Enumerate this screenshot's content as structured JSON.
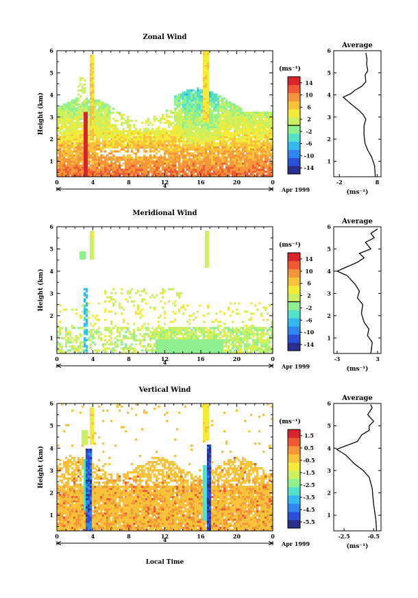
{
  "date_label": "Apr 1999",
  "xlabel": "Local Time",
  "ylabel": "Height (km)",
  "avg_xlabel": "(ms⁻¹)",
  "units_label": "(ms⁻¹)",
  "day_label": "4",
  "colors": [
    "#2b2e8c",
    "#2a4fd8",
    "#2f86f0",
    "#34b8f0",
    "#55e0c8",
    "#8ef08e",
    "#cdf060",
    "#f3ea3a",
    "#f8c23a",
    "#f6963a",
    "#ee5a32",
    "#d8242a"
  ],
  "chart_data": [
    {
      "type": "heatmap",
      "title": "Zonal Wind",
      "x_ticks": [
        "0",
        "4",
        "8",
        "12",
        "16",
        "20",
        "0"
      ],
      "x_range": [
        0,
        24
      ],
      "y_ticks": [
        "1",
        "2",
        "3",
        "4",
        "5",
        "6"
      ],
      "y_range": [
        0.3,
        6
      ],
      "colorbar_ticks": [
        "14",
        "10",
        "6",
        "2",
        "-2",
        "-6",
        "-10",
        "-14"
      ],
      "colorbar_range": [
        -16,
        16
      ],
      "colorbar_mark": 0,
      "profile": {
        "title": "Average",
        "x_ticks": [
          "-2",
          "8"
        ],
        "x_range": [
          -3.5,
          9
        ],
        "points": [
          [
            7.5,
            0.3
          ],
          [
            7.3,
            0.8
          ],
          [
            6.5,
            1.2
          ],
          [
            5.5,
            1.5
          ],
          [
            4.8,
            1.8
          ],
          [
            4.5,
            2.2
          ],
          [
            4.5,
            2.6
          ],
          [
            5,
            2.9
          ],
          [
            4.3,
            3.1
          ],
          [
            3.2,
            3.3
          ],
          [
            1,
            3.6
          ],
          [
            -1,
            3.9
          ],
          [
            1,
            4.05
          ],
          [
            2,
            4.2
          ],
          [
            4,
            4.4
          ],
          [
            5,
            4.6
          ],
          [
            4.8,
            4.9
          ],
          [
            5.5,
            5.1
          ],
          [
            5.2,
            5.4
          ],
          [
            5.3,
            5.6
          ],
          [
            5,
            5.9
          ]
        ]
      }
    },
    {
      "type": "heatmap",
      "title": "Meridional Wind",
      "x_ticks": [
        "0",
        "4",
        "8",
        "12",
        "16",
        "20",
        "0"
      ],
      "x_range": [
        0,
        24
      ],
      "y_ticks": [
        "1",
        "2",
        "3",
        "4",
        "5",
        "6"
      ],
      "y_range": [
        0.3,
        6
      ],
      "colorbar_ticks": [
        "14",
        "10",
        "6",
        "2",
        "-2",
        "-6",
        "-10",
        "-14"
      ],
      "colorbar_range": [
        -16,
        16
      ],
      "colorbar_mark": 0,
      "profile": {
        "title": "Average",
        "x_ticks": [
          "-3",
          "3"
        ],
        "x_range": [
          -3.5,
          3.5
        ],
        "points": [
          [
            2,
            0.3
          ],
          [
            2.2,
            0.8
          ],
          [
            1.5,
            1.1
          ],
          [
            1.7,
            1.4
          ],
          [
            1,
            1.7
          ],
          [
            0.6,
            2.1
          ],
          [
            0.8,
            2.5
          ],
          [
            0,
            2.8
          ],
          [
            0.3,
            3.1
          ],
          [
            -0.3,
            3.4
          ],
          [
            -1.5,
            3.8
          ],
          [
            -3,
            4.0
          ],
          [
            -1.5,
            4.2
          ],
          [
            0,
            4.4
          ],
          [
            1,
            4.6
          ],
          [
            0.3,
            4.8
          ],
          [
            2,
            5.0
          ],
          [
            1.2,
            5.3
          ],
          [
            2.5,
            5.5
          ],
          [
            2,
            5.7
          ],
          [
            3,
            5.9
          ]
        ]
      }
    },
    {
      "type": "heatmap",
      "title": "Vertical Wind",
      "x_ticks": [
        "0",
        "4",
        "8",
        "12",
        "16",
        "20",
        "0"
      ],
      "x_range": [
        0,
        24
      ],
      "y_ticks": [
        "1",
        "2",
        "3",
        "4",
        "5",
        "6"
      ],
      "y_range": [
        0.3,
        6
      ],
      "colorbar_ticks": [
        "1.5",
        "0.5",
        "-0.5",
        "-1.5",
        "-2.5",
        "-3.5",
        "-4.5",
        "-5.5"
      ],
      "colorbar_range": [
        -6,
        2
      ],
      "colorbar_mark": null,
      "profile": {
        "title": "Average",
        "x_ticks": [
          "-2.5",
          "-0.5"
        ],
        "x_range": [
          -3.2,
          0.0
        ],
        "points": [
          [
            -0.3,
            0.3
          ],
          [
            -0.35,
            0.8
          ],
          [
            -0.5,
            1.5
          ],
          [
            -0.6,
            2.2
          ],
          [
            -0.8,
            2.7
          ],
          [
            -1.2,
            3.0
          ],
          [
            -1.8,
            3.3
          ],
          [
            -2.4,
            3.7
          ],
          [
            -3.0,
            3.95
          ],
          [
            -2.4,
            4.1
          ],
          [
            -1.6,
            4.3
          ],
          [
            -1.3,
            4.6
          ],
          [
            -0.8,
            4.8
          ],
          [
            -0.8,
            5.0
          ],
          [
            -0.5,
            5.2
          ],
          [
            -0.9,
            5.5
          ],
          [
            -0.6,
            5.8
          ],
          [
            -0.7,
            5.95
          ]
        ]
      }
    }
  ]
}
